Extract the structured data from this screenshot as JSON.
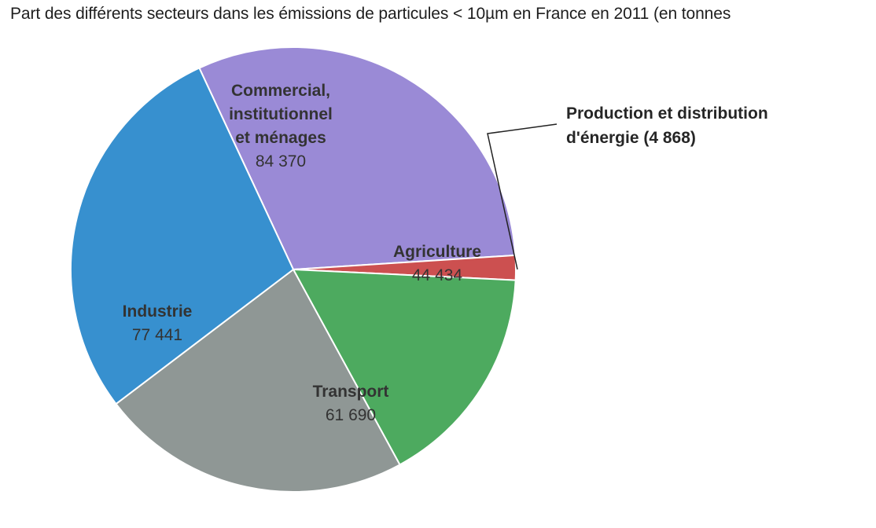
{
  "chart_data": {
    "type": "pie",
    "title": "Part des différents secteurs dans les émissions de particules < 10µm en France en 2011 (en tonnes",
    "slices": [
      {
        "name": "Commercial, institutionnel et ménages",
        "label_lines": [
          "Commercial,",
          "institutionnel",
          "et ménages"
        ],
        "value": 84370,
        "value_label": "84 370",
        "color": "#9a8ad6"
      },
      {
        "name": "Production et distribution d'énergie",
        "label_lines": [
          "Production et distribution",
          "d'énergie (4 868)"
        ],
        "value": 4868,
        "value_label": "",
        "color": "#cc5050"
      },
      {
        "name": "Agriculture",
        "label_lines": [
          "Agriculture"
        ],
        "value": 44434,
        "value_label": "44 434",
        "color": "#4daa5f"
      },
      {
        "name": "Transport",
        "label_lines": [
          "Transport"
        ],
        "value": 61690,
        "value_label": "61 690",
        "color": "#8f9795"
      },
      {
        "name": "Industrie",
        "label_lines": [
          "Industrie"
        ],
        "value": 77441,
        "value_label": "77 441",
        "color": "#3790cf"
      }
    ],
    "legend": "none"
  }
}
